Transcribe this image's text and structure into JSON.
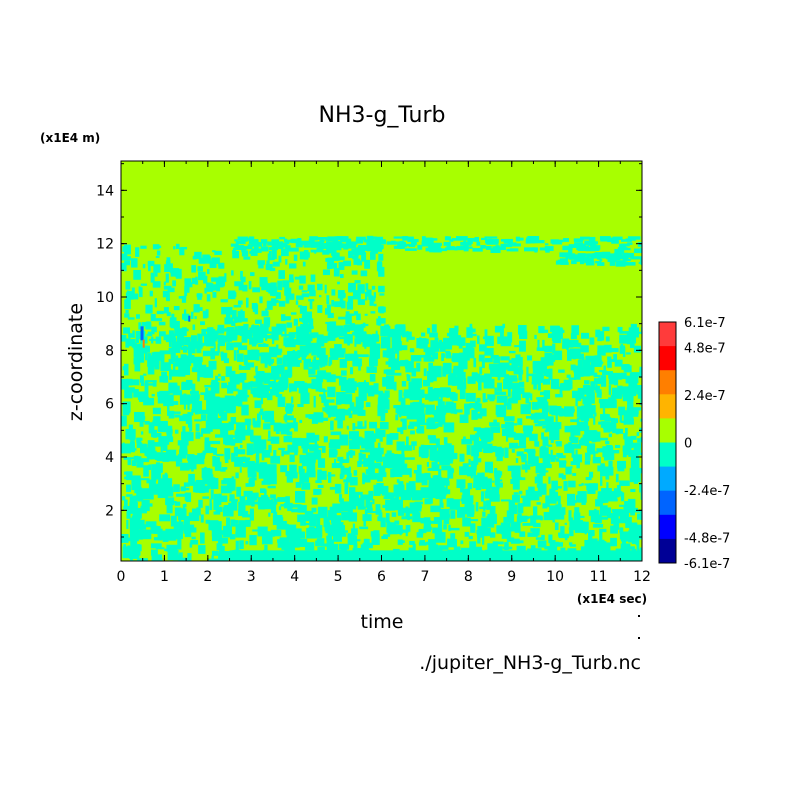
{
  "chart_data": {
    "type": "heatmap",
    "title": "NH3-g_Turb",
    "xlabel": "time",
    "ylabel": "z-coordinate",
    "x_unit": "(x1E4 sec)",
    "y_unit": "(x1E4 m)",
    "source_file": "./jupiter_NH3-g_Turb.nc",
    "xlim": [
      0,
      12
    ],
    "ylim": [
      0.1,
      15.1
    ],
    "x_ticks": [
      "0",
      "1",
      "2",
      "3",
      "4",
      "5",
      "6",
      "7",
      "8",
      "9",
      "10",
      "11",
      "12"
    ],
    "x_tick_values": [
      0,
      1,
      2,
      3,
      4,
      5,
      6,
      7,
      8,
      9,
      10,
      11,
      12
    ],
    "y_ticks": [
      "2",
      "4",
      "6",
      "8",
      "10",
      "12",
      "14"
    ],
    "y_tick_values": [
      2,
      4,
      6,
      8,
      10,
      12,
      14
    ],
    "colorbar": {
      "range": [
        -6.1e-07,
        6.1e-07
      ],
      "tick_labels": [
        "6.1e-7",
        "4.8e-7",
        "2.4e-7",
        "0",
        "-2.4e-7",
        "-4.8e-7",
        "-6.1e-7"
      ],
      "tick_values": [
        6.1e-07,
        4.8e-07,
        2.4e-07,
        0,
        -2.4e-07,
        -4.8e-07,
        -6.1e-07
      ],
      "colors_top_to_bottom": [
        "#ff3b3b",
        "#ff0000",
        "#ff7f00",
        "#ffb400",
        "#a8ff00",
        "#00ffc8",
        "#00aaff",
        "#0064ff",
        "#0000ff",
        "#000096"
      ]
    },
    "field_description_bands": [
      {
        "z_min": 12.3,
        "z_max": 15.1,
        "dominant": "0"
      },
      {
        "z_min": 11.8,
        "z_max": 12.3,
        "dominant": "slightly negative"
      },
      {
        "z_min": 9.0,
        "z_max": 11.8,
        "dominant": "0"
      },
      {
        "z_min": 0.1,
        "z_max": 9.0,
        "dominant": "mixed 0 / slightly negative"
      }
    ]
  }
}
